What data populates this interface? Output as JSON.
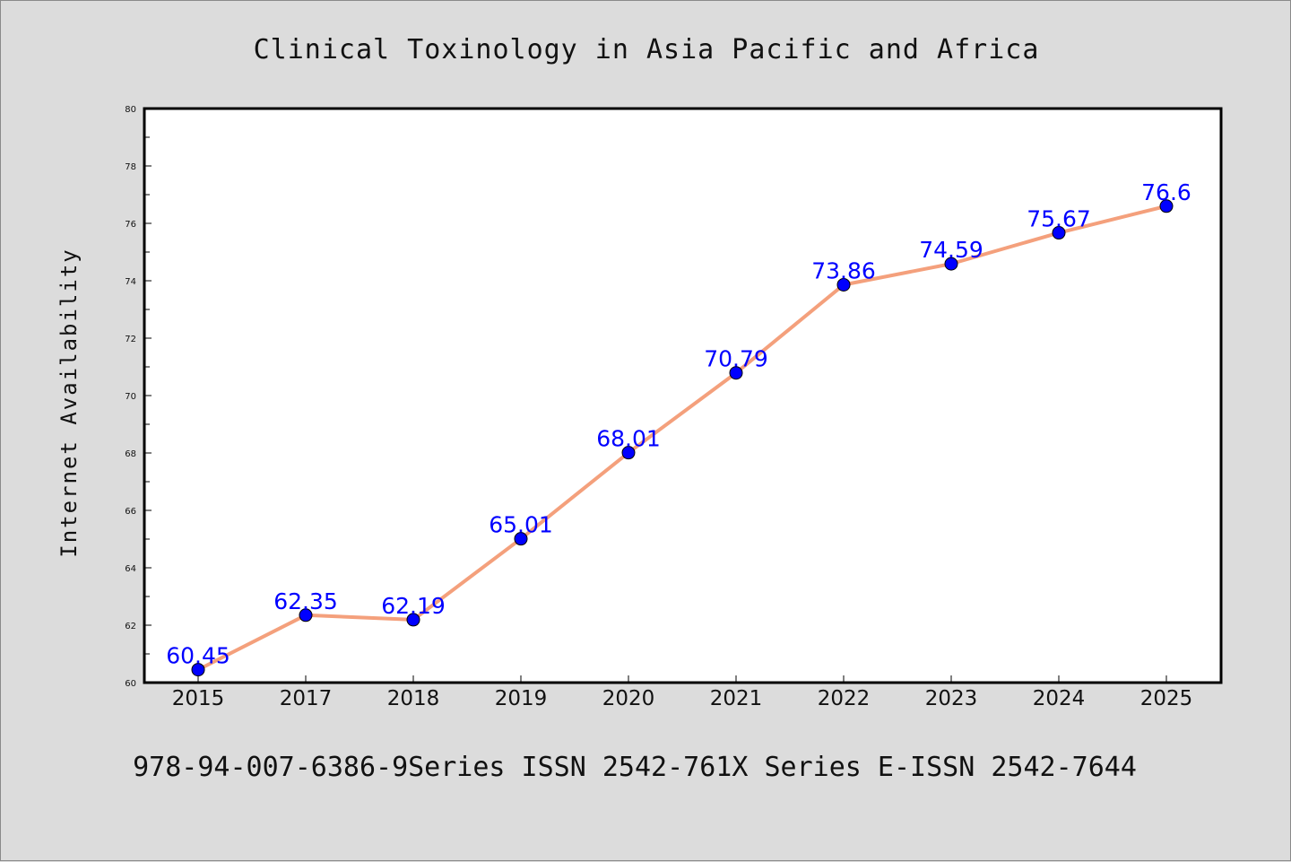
{
  "chart_data": {
    "type": "line",
    "title": "Clinical Toxinology in Asia Pacific and Africa",
    "xlabel": "",
    "ylabel": "Internet Availability",
    "footer": "978-94-007-6386-9Series ISSN 2542-761X Series E-ISSN 2542-7644",
    "categories": [
      "2015",
      "2017",
      "2018",
      "2019",
      "2020",
      "2021",
      "2022",
      "2023",
      "2024",
      "2025"
    ],
    "series": [
      {
        "values": [
          60.45,
          62.35,
          62.19,
          65.01,
          68.01,
          70.79,
          73.86,
          74.59,
          75.67,
          76.6
        ],
        "labels": [
          "60.45",
          "62.35",
          "62.19",
          "65.01",
          "68.01",
          "70.79",
          "73.86",
          "74.59",
          "75.67",
          "76.6"
        ],
        "line_color": "#f4a07c",
        "marker_color": "#0000ff"
      }
    ],
    "ylim": [
      60,
      80
    ],
    "yticks": [
      60,
      62,
      64,
      66,
      68,
      70,
      72,
      74,
      76,
      78,
      80
    ],
    "ytick_labels": [
      "60",
      "62",
      "64",
      "66",
      "68",
      "70",
      "72",
      "74",
      "76",
      "78",
      "80"
    ],
    "grid": false,
    "legend": "none"
  },
  "colors": {
    "background": "#dcdcdc",
    "plot_background": "#ffffff",
    "line": "#f4a07c",
    "marker": "#0000ff",
    "data_label": "#0000ff"
  }
}
